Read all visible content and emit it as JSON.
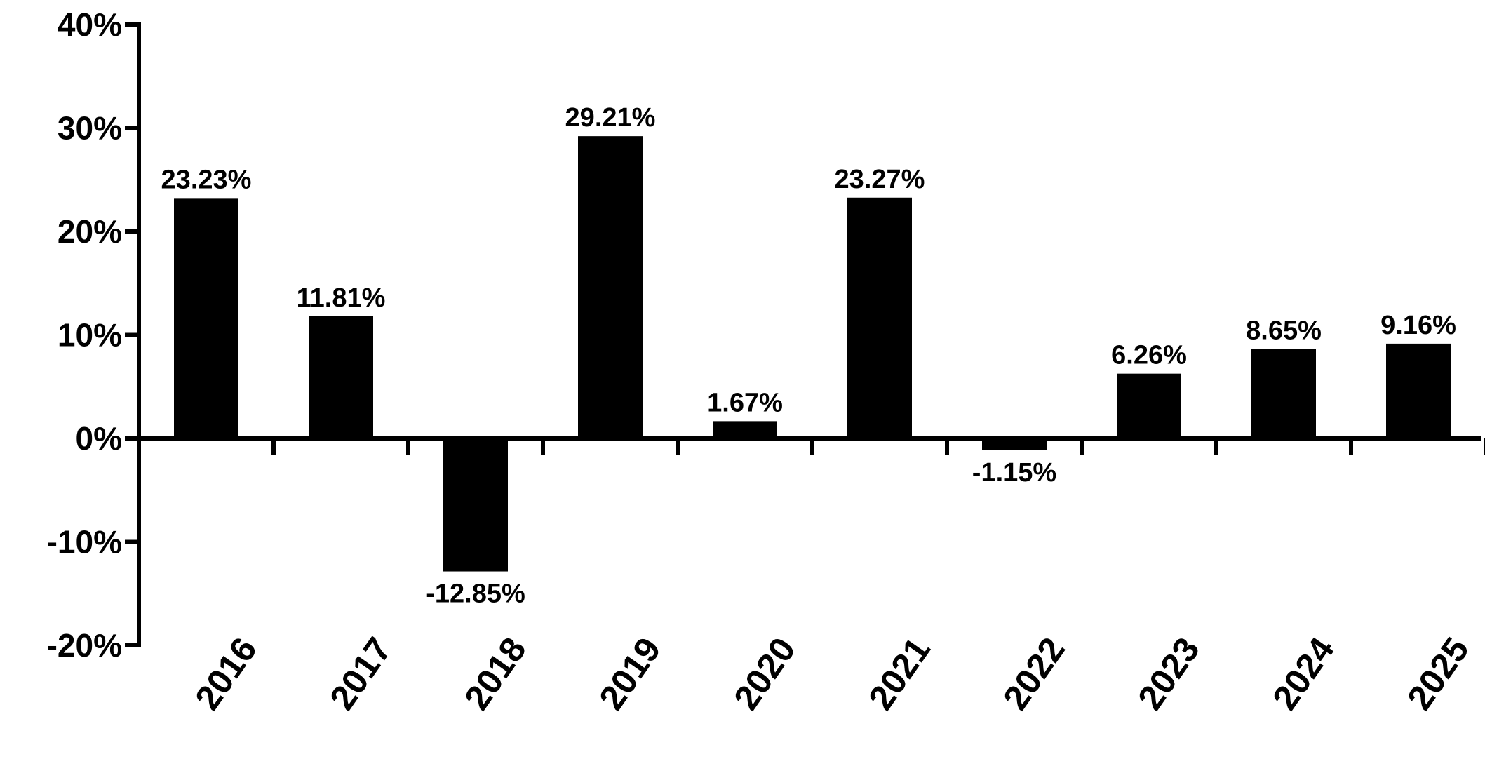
{
  "chart_data": {
    "type": "bar",
    "title": "",
    "xlabel": "",
    "ylabel": "",
    "categories": [
      "2016",
      "2017",
      "2018",
      "2019",
      "2020",
      "2021",
      "2022",
      "2023",
      "2024",
      "2025"
    ],
    "values": [
      23.23,
      11.81,
      -12.85,
      29.21,
      1.67,
      23.27,
      -1.15,
      6.26,
      8.65,
      9.16
    ],
    "data_labels": [
      "23.23%",
      "11.81%",
      "-12.85%",
      "29.21%",
      "1.67%",
      "23.27%",
      "-1.15%",
      "6.26%",
      "8.65%",
      "9.16%"
    ],
    "ylim": [
      -20,
      40
    ],
    "y_ticks": [
      40,
      30,
      20,
      10,
      0,
      -10,
      -20
    ],
    "y_tick_labels": [
      "40%",
      "30%",
      "20%",
      "10%",
      "0%",
      "-10%",
      "-20%"
    ],
    "grid": false,
    "legend": "none",
    "bar_color": "#000000",
    "axis_color": "#000000"
  }
}
